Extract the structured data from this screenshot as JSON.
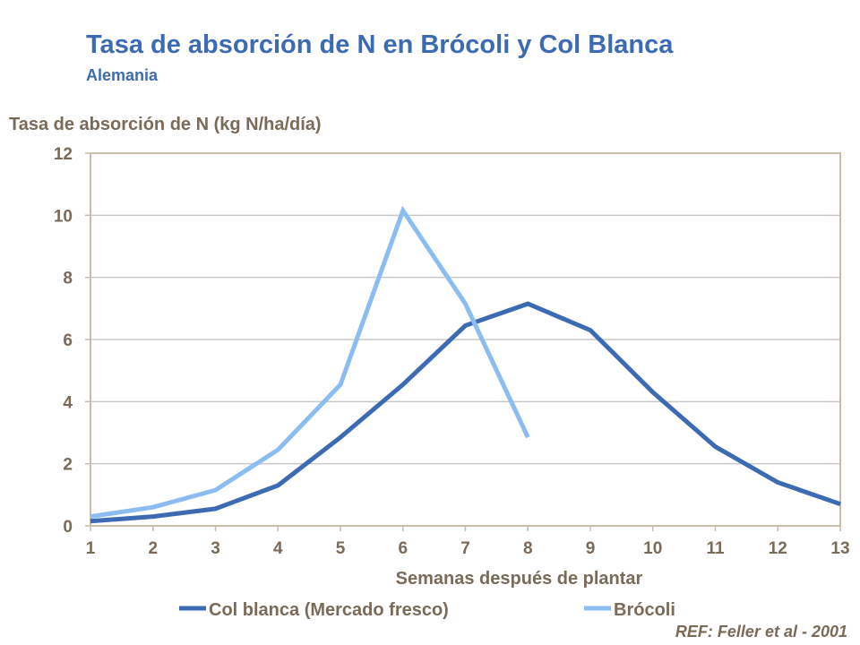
{
  "chart_data": {
    "type": "line",
    "title": "Tasa de absorción de N en Brócoli y Col Blanca",
    "subtitle": "Alemania",
    "ylabel": "Tasa de absorción de N (kg N/ha/día)",
    "xlabel": "Semanas después de plantar",
    "x": [
      1,
      2,
      3,
      4,
      5,
      6,
      7,
      8,
      9,
      10,
      11,
      12,
      13
    ],
    "xlim": [
      1,
      13
    ],
    "ylim": [
      0,
      12
    ],
    "yticks": [
      0,
      2,
      4,
      6,
      8,
      10,
      12
    ],
    "grid": true,
    "legend_position": "bottom",
    "series": [
      {
        "name": "Col blanca (Mercado fresco)",
        "color": "#3d6bb3",
        "x": [
          1,
          2,
          3,
          4,
          5,
          6,
          7,
          8,
          9,
          10,
          11,
          12,
          13
        ],
        "values": [
          0.15,
          0.3,
          0.55,
          1.3,
          2.85,
          4.55,
          6.45,
          7.15,
          6.3,
          4.3,
          2.55,
          1.4,
          0.7
        ]
      },
      {
        "name": "Brócoli",
        "color": "#8cbdf2",
        "x": [
          1,
          2,
          3,
          4,
          5,
          6,
          7,
          8
        ],
        "values": [
          0.3,
          0.6,
          1.15,
          2.45,
          4.55,
          10.15,
          7.15,
          2.85
        ]
      }
    ],
    "reference": "REF: Feller et al - 2001"
  },
  "colors": {
    "title": "#3d6bb3",
    "axis_text": "#7a6a58",
    "plot_border": "#c8bca8",
    "grid": "#c8c8c8"
  }
}
